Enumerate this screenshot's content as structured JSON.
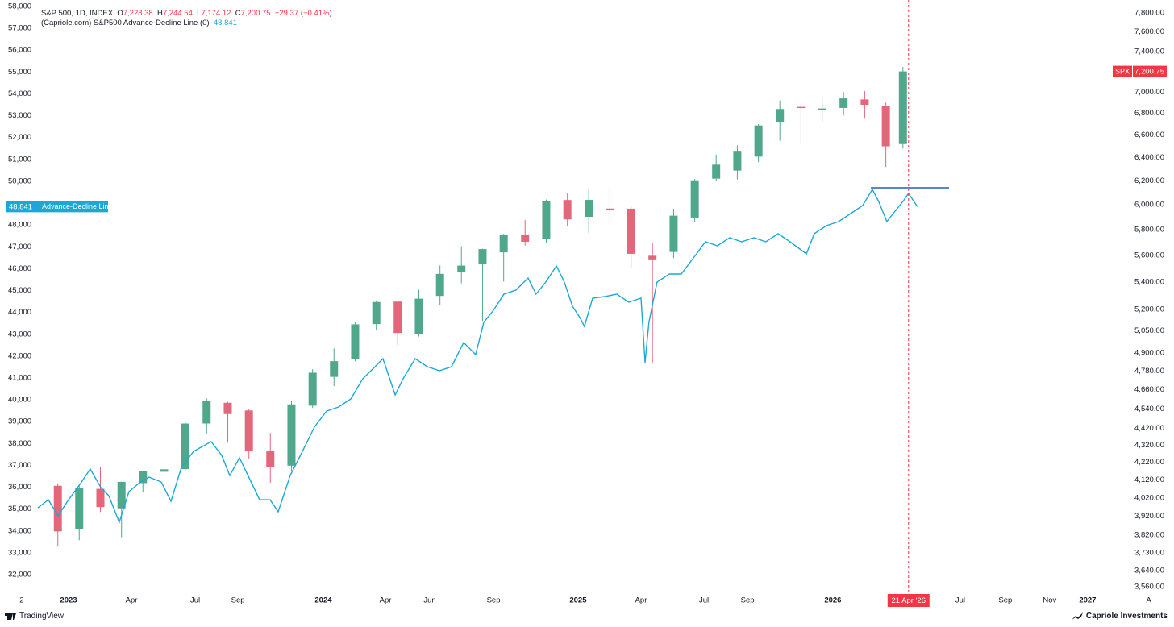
{
  "chart_data": {
    "type": "candlestick",
    "legend_header": {
      "symbol": "S&P 500, 1D, INDEX",
      "ohlc": [
        {
          "key": "O",
          "value": "7,228.38"
        },
        {
          "key": "H",
          "value": "7,244.54"
        },
        {
          "key": "L",
          "value": "7,174.12"
        },
        {
          "key": "C",
          "value": "7,200.75"
        }
      ],
      "change": "−29.37 (−0.41%)",
      "indicator": "(Capriole.com) S&P500 Advance-Decline Line (0)"
    },
    "xlim": [
      2022.731,
      2027.339
    ],
    "xticks": [
      {
        "value": 2022.816,
        "label": "2"
      },
      2023,
      {
        "value": 2023.247,
        "label": "Apr"
      },
      {
        "value": 2023.497,
        "label": "Jul"
      },
      {
        "value": 2023.665,
        "label": "Sep"
      },
      2024,
      {
        "value": 2024.244,
        "label": "Apr"
      },
      {
        "value": 2024.418,
        "label": "Jun"
      },
      {
        "value": 2024.668,
        "label": "Sep"
      },
      2025,
      {
        "value": 2025.247,
        "label": "Apr"
      },
      {
        "value": 2025.494,
        "label": "Jul"
      },
      {
        "value": 2025.665,
        "label": "Sep"
      },
      2026,
      {
        "value": 2026.5,
        "label": "Jul"
      },
      {
        "value": 2026.677,
        "label": "Sep"
      },
      {
        "value": 2026.851,
        "label": "Nov"
      },
      2027,
      {
        "value": 2027.24,
        "label": "A"
      }
    ],
    "ylim": [
      31190,
      58295
    ],
    "yticks": [
      {
        "value": 32000,
        "label": "32,000"
      },
      {
        "value": 33000,
        "label": "33,000"
      },
      {
        "value": 34000,
        "label": "34,000"
      },
      {
        "value": 35000,
        "label": "35,000"
      },
      {
        "value": 36000,
        "label": "36,000"
      },
      {
        "value": 37000,
        "label": "37,000"
      },
      {
        "value": 38000,
        "label": "38,000"
      },
      {
        "value": 39000,
        "label": "39,000"
      },
      {
        "value": 40000,
        "label": "40,000"
      },
      {
        "value": 41000,
        "label": "41,000"
      },
      {
        "value": 42000,
        "label": "42,000"
      },
      {
        "value": 43000,
        "label": "43,000"
      },
      {
        "value": 44000,
        "label": "44,000"
      },
      {
        "value": 45000,
        "label": "45,000"
      },
      {
        "value": 46000,
        "label": "46,000"
      },
      {
        "value": 47000,
        "label": "47,000"
      },
      {
        "value": 48000,
        "label": "48,000"
      },
      {
        "value": 50000,
        "label": "50,000"
      },
      {
        "value": 51000,
        "label": "51,000"
      },
      {
        "value": 52000,
        "label": "52,000"
      },
      {
        "value": 53000,
        "label": "53,000"
      },
      {
        "value": 54000,
        "label": "54,000"
      },
      {
        "value": 55000,
        "label": "55,000"
      },
      {
        "value": 56000,
        "label": "56,000"
      },
      {
        "value": 57000,
        "label": "57,000"
      },
      {
        "value": 58000,
        "label": "58,000"
      }
    ],
    "y2lim": [
      3533,
      7939
    ],
    "y2scale": "log",
    "y2ticks": [
      {
        "value": 3560,
        "label": "3,560.00"
      },
      {
        "value": 3640,
        "label": "3,640.00"
      },
      {
        "value": 3730,
        "label": "3,730.00"
      },
      {
        "value": 3820,
        "label": "3,820.00"
      },
      {
        "value": 3920,
        "label": "3,920.00"
      },
      {
        "value": 4020,
        "label": "4,020.00"
      },
      {
        "value": 4120,
        "label": "4,120.00"
      },
      {
        "value": 4220,
        "label": "4,220.00"
      },
      {
        "value": 4320,
        "label": "4,320.00"
      },
      {
        "value": 4420,
        "label": "4,420.00"
      },
      {
        "value": 4540,
        "label": "4,540.00"
      },
      {
        "value": 4660,
        "label": "4,660.00"
      },
      {
        "value": 4780,
        "label": "4,780.00"
      },
      {
        "value": 4900,
        "label": "4,900.00"
      },
      {
        "value": 5050,
        "label": "5,050.00"
      },
      {
        "value": 5200,
        "label": "5,200.00"
      },
      {
        "value": 5400,
        "label": "5,400.00"
      },
      {
        "value": 5600,
        "label": "5,600.00"
      },
      {
        "value": 5800,
        "label": "5,800.00"
      },
      {
        "value": 6000,
        "label": "6,000.00"
      },
      {
        "value": 6200,
        "label": "6,200.00"
      },
      {
        "value": 6400,
        "label": "6,400.00"
      },
      {
        "value": 6600,
        "label": "6,600.00"
      },
      {
        "value": 6800,
        "label": "6,800.00"
      },
      {
        "value": 7000,
        "label": "7,000.00"
      },
      {
        "value": 7400,
        "label": "7,400.00"
      },
      {
        "value": 7600,
        "label": "7,600.00"
      },
      {
        "value": 7800,
        "label": "7,800.00"
      }
    ],
    "grid": false,
    "series": [
      {
        "name": "SPX",
        "type": "candlestick",
        "axis": "y2",
        "up_color": "#4fa88c",
        "down_color": "#e3677a",
        "last_label_color": "#f23645",
        "x": [
          2022.958,
          2023.042,
          2023.125,
          2023.208,
          2023.292,
          2023.375,
          2023.458,
          2023.542,
          2023.625,
          2023.708,
          2023.792,
          2023.875,
          2023.958,
          2024.042,
          2024.125,
          2024.208,
          2024.292,
          2024.375,
          2024.458,
          2024.542,
          2024.625,
          2024.708,
          2024.792,
          2024.875,
          2024.958,
          2025.042,
          2025.125,
          2025.208,
          2025.292,
          2025.375,
          2025.458,
          2025.542,
          2025.625,
          2025.708,
          2025.792,
          2025.875,
          2025.958,
          2026.042,
          2026.125,
          2026.208,
          2026.275
        ],
        "open": [
          4087,
          3853,
          4070,
          3963,
          4102,
          4166,
          4181,
          4450,
          4578,
          4530,
          4284,
          4201,
          4560,
          4743,
          4862,
          5098,
          5257,
          5029,
          5298,
          5471,
          5537,
          5623,
          5758,
          5724,
          6040,
          5903,
          5970,
          5969,
          5597,
          5626,
          5897,
          6219,
          6288,
          6409,
          6715,
          6860,
          6830,
          6850,
          6930,
          6870,
          6520
        ],
        "high": [
          4101,
          4095,
          4195,
          4110,
          4170,
          4232,
          4458,
          4607,
          4584,
          4541,
          4393,
          4587,
          4793,
          4931,
          5111,
          5265,
          5264,
          5342,
          5523,
          5670,
          5651,
          5767,
          5878,
          6044,
          6100,
          6129,
          6147,
          5986,
          5696,
          5968,
          6216,
          6427,
          6508,
          6700,
          6920,
          6890,
          6950,
          7000,
          7010,
          6900,
          7244.54
        ],
        "low": [
          3764,
          3794,
          3943,
          3809,
          4049,
          4048,
          4167,
          4385,
          4335,
          4238,
          4104,
          4168,
          4546,
          4683,
          4845,
          5056,
          4954,
          5012,
          5235,
          5390,
          5120,
          5403,
          5675,
          5697,
          5832,
          5773,
          5838,
          5505,
          4835,
          5579,
          5862,
          6201,
          6212,
          6360,
          6550,
          6520,
          6720,
          6780,
          6750,
          6320,
          6480
        ],
        "close": [
          3840,
          4077,
          3970,
          4109,
          4169,
          4180,
          4450,
          4589,
          4508,
          4288,
          4194,
          4568,
          4770,
          4846,
          5096,
          5254,
          5036,
          5278,
          5460,
          5522,
          5648,
          5762,
          5705,
          6032,
          5882,
          6041,
          5955,
          5612,
          5569,
          5912,
          6205,
          6339,
          6460,
          6688,
          6840,
          6849,
          6845,
          6940,
          6880,
          6500,
          7200.75
        ]
      },
      {
        "name": "Advance-Decline Line",
        "type": "line",
        "axis": "y",
        "color": "#1ba8d6",
        "last_label": "48,841",
        "x": [
          2022.88,
          2022.921,
          2022.959,
          2023.0,
          2023.047,
          2023.085,
          2023.127,
          2023.158,
          2023.199,
          2023.237,
          2023.275,
          2023.316,
          2023.364,
          2023.402,
          2023.443,
          2023.491,
          2023.56,
          2023.601,
          2023.633,
          2023.671,
          2023.712,
          2023.75,
          2023.791,
          2023.823,
          2023.87,
          2023.918,
          2023.965,
          2024.013,
          2024.06,
          2024.108,
          2024.155,
          2024.203,
          2024.234,
          2024.282,
          2024.313,
          2024.361,
          2024.408,
          2024.456,
          2024.503,
          2024.551,
          2024.598,
          2024.63,
          2024.668,
          2024.709,
          2024.756,
          2024.804,
          2024.835,
          2024.873,
          2024.915,
          2024.946,
          2024.978,
          2025.009,
          2025.025,
          2025.057,
          2025.104,
          2025.152,
          2025.199,
          2025.247,
          2025.263,
          2025.278,
          2025.31,
          2025.358,
          2025.405,
          2025.453,
          2025.5,
          2025.547,
          2025.595,
          2025.642,
          2025.69,
          2025.737,
          2025.785,
          2025.832,
          2025.896,
          2025.927,
          2025.975,
          2026.022,
          2026.07,
          2026.117,
          2026.155,
          2026.18,
          2026.212,
          2026.244,
          2026.275,
          2026.297,
          2026.332
        ],
        "values": [
          35061,
          35429,
          34692,
          35429,
          36167,
          36831,
          35983,
          35614,
          34397,
          35798,
          36167,
          36462,
          36241,
          35356,
          36905,
          37642,
          38085,
          37458,
          36536,
          37347,
          36351,
          35429,
          35429,
          34876,
          36536,
          37642,
          38749,
          39486,
          39671,
          40039,
          40961,
          41515,
          41883,
          40224,
          40961,
          41883,
          41515,
          41330,
          41515,
          42621,
          42068,
          43543,
          44096,
          44834,
          45018,
          45571,
          44834,
          45387,
          46125,
          45387,
          44281,
          43727,
          43359,
          44649,
          44723,
          44834,
          44465,
          44649,
          41699,
          43543,
          45387,
          45756,
          45756,
          46493,
          47231,
          47047,
          47415,
          47231,
          47415,
          47231,
          47600,
          47231,
          46678,
          47600,
          47969,
          48153,
          48522,
          48891,
          49628,
          49075,
          48153,
          48632,
          49075,
          49444,
          48841
        ]
      }
    ],
    "reference_line": {
      "value": 49702,
      "x": [
        2026.149,
        2026.456
      ],
      "color": "#1f5fbf"
    },
    "cursor": {
      "x": 2026.297,
      "label": "21 Apr '26",
      "color": "#f23645"
    }
  },
  "footer": {
    "left": "TradingView",
    "right": "Capriole Investments"
  }
}
